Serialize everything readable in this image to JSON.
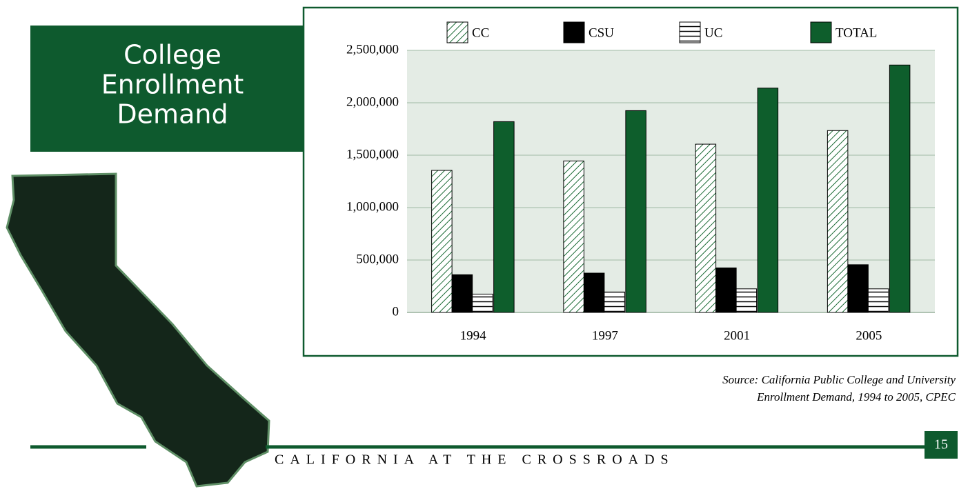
{
  "title_lines": [
    "College",
    "Enrollment",
    "Demand"
  ],
  "chart_data": {
    "type": "bar",
    "categories": [
      "1994",
      "1997",
      "2001",
      "2005"
    ],
    "series": [
      {
        "name": "CC",
        "color": "#1b6b35",
        "pattern": "diagonal-hatch",
        "values": [
          1355000,
          1445000,
          1605000,
          1735000
        ]
      },
      {
        "name": "CSU",
        "color": "#000000",
        "values": [
          360000,
          375000,
          425000,
          455000
        ]
      },
      {
        "name": "UC",
        "color": "#000000",
        "pattern": "horizontal-lines",
        "values": [
          175000,
          195000,
          225000,
          225000
        ]
      },
      {
        "name": "TOTAL",
        "color": "#0e5e2c",
        "values": [
          1820000,
          1925000,
          2140000,
          2360000
        ]
      }
    ],
    "ylim": [
      0,
      2500000
    ],
    "yticks": [
      0,
      {
        "value": 500000,
        "label": "500,000"
      },
      {
        "value": 1000000,
        "label": "1,000,000"
      },
      {
        "value": 1500000,
        "label": "1,500,000"
      },
      {
        "value": 2000000,
        "label": "2,000,000"
      },
      {
        "value": 2500000,
        "label": "2,500,000"
      }
    ],
    "grid": true
  },
  "source_lines": [
    "Source:  California Public College and University",
    "Enrollment Demand, 1994 to 2005, CPEC"
  ],
  "footer": "CALIFORNIA AT THE CROSSROADS",
  "page_number": "15"
}
